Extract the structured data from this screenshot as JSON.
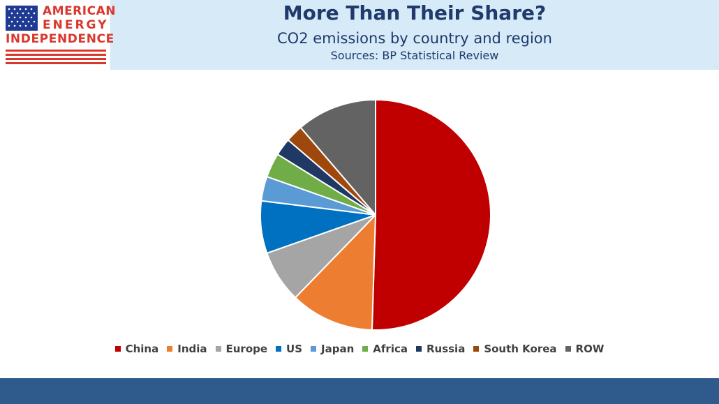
{
  "logo": {
    "line1": "AMERICAN",
    "line2": "ENERGY",
    "line3": "INDEPENDENCE"
  },
  "header": {
    "title": "More Than Their Share?",
    "subtitle": "CO2 emissions by country and region",
    "source": "Sources: BP Statistical Review"
  },
  "colors": {
    "header_band": "#d6eaf8",
    "footer_band": "#2e5b8c",
    "title_text": "#1f3a6b",
    "logo_red": "#d9372c",
    "logo_blue": "#1f3a93"
  },
  "chart_data": {
    "type": "pie",
    "title": "",
    "start_angle_deg": 0,
    "direction": "clockwise",
    "legend_position": "bottom",
    "slices": [
      {
        "name": "China",
        "value": 51.5,
        "color": "#c00000"
      },
      {
        "name": "India",
        "value": 12.0,
        "color": "#ed7d31"
      },
      {
        "name": "Europe",
        "value": 7.5,
        "color": "#a5a5a5"
      },
      {
        "name": "US",
        "value": 7.5,
        "color": "#0070c0"
      },
      {
        "name": "Japan",
        "value": 3.5,
        "color": "#5b9bd5"
      },
      {
        "name": "Africa",
        "value": 3.5,
        "color": "#70ad47"
      },
      {
        "name": "Russia",
        "value": 2.5,
        "color": "#1f3864"
      },
      {
        "name": "South Korea",
        "value": 2.5,
        "color": "#9e480e"
      },
      {
        "name": "ROW",
        "value": 11.5,
        "color": "#636363"
      }
    ]
  }
}
